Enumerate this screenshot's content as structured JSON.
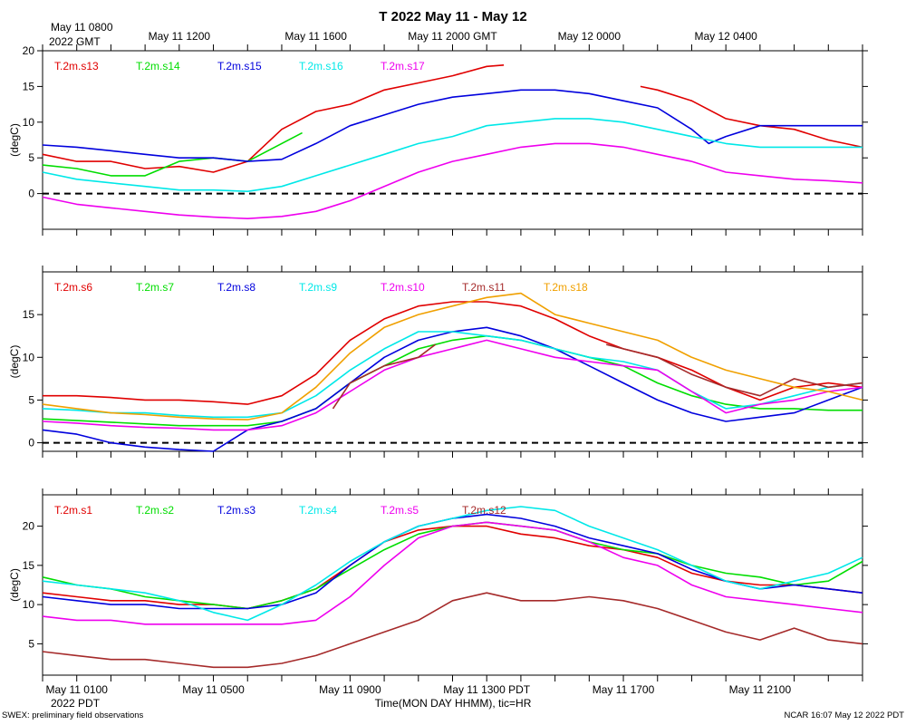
{
  "title": "T 2022 May 11 - May 12",
  "top_axis": {
    "start_label_line1": "May 11 0800",
    "start_label_line2": "2022 GMT",
    "tick_labels": [
      {
        "hour": 4,
        "label": "May 11 1200"
      },
      {
        "hour": 8,
        "label": "May 11 1600"
      },
      {
        "hour": 12,
        "label": "May 11 2000 GMT"
      },
      {
        "hour": 16,
        "label": "May 12 0000"
      },
      {
        "hour": 20,
        "label": "May 12 0400"
      }
    ]
  },
  "bottom_axis": {
    "tick_labels": [
      {
        "hour": 1,
        "label": "May 11 0100"
      },
      {
        "hour": 5,
        "label": "May 11 0500"
      },
      {
        "hour": 9,
        "label": "May 11 0900"
      },
      {
        "hour": 13,
        "label": "May 11 1300 PDT"
      },
      {
        "hour": 17,
        "label": "May 11 1700"
      },
      {
        "hour": 21,
        "label": "May 11 2100"
      }
    ],
    "start_label": "2022 PDT",
    "xlabel": "Time(MON DAY HHMM), tic=HR"
  },
  "footer_left": "SWEX: preliminary field observations",
  "footer_right": "NCAR 16:07 May 12 2022 PDT",
  "chart_data": [
    {
      "type": "line",
      "panel": "top",
      "ylabel": "(degC)",
      "xlim_hours_pdt": [
        0,
        24
      ],
      "ylim": [
        -5,
        20
      ],
      "yticks": [
        0,
        5,
        10,
        15,
        20
      ],
      "zero_line": true,
      "series": [
        {
          "name": "T.2m.s13",
          "color": "#e00000",
          "x": [
            0,
            1,
            2,
            3,
            4,
            5,
            6,
            7,
            8,
            9,
            10,
            11,
            12,
            13,
            13.5
          ],
          "y": [
            5.5,
            4.5,
            4.5,
            3.5,
            3.8,
            3,
            4.5,
            9,
            11.5,
            12.5,
            14.5,
            15.5,
            16.5,
            17.8,
            18
          ]
        },
        {
          "name": "T.2m.s13",
          "color": "#e00000",
          "x": [
            17.5,
            18,
            19,
            20,
            21,
            22,
            23,
            24
          ],
          "y": [
            15,
            14.5,
            13,
            10.5,
            9.5,
            9,
            7.5,
            6.5
          ]
        },
        {
          "name": "T.2m.s14",
          "color": "#00dd00",
          "x": [
            0,
            1,
            2,
            3,
            4,
            5,
            6,
            7.6
          ],
          "y": [
            4,
            3.5,
            2.5,
            2.5,
            4.5,
            5,
            4.5,
            8.5
          ]
        },
        {
          "name": "T.2m.s15",
          "color": "#0000dd",
          "x": [
            0,
            1,
            2,
            3,
            4,
            5,
            6,
            7,
            8,
            9,
            10,
            11,
            12,
            13,
            14,
            15,
            16,
            17,
            18,
            19,
            19.5,
            20,
            21,
            22,
            23,
            24
          ],
          "y": [
            6.8,
            6.5,
            6,
            5.5,
            5,
            5,
            4.5,
            4.8,
            7,
            9.5,
            11,
            12.5,
            13.5,
            14,
            14.5,
            14.5,
            14,
            13,
            12,
            9,
            7,
            8,
            9.5,
            9.5,
            9.5,
            9.5
          ]
        },
        {
          "name": "T.2m.s16",
          "color": "#00e8e8",
          "x": [
            0,
            1,
            2,
            3,
            4,
            5,
            6,
            7,
            8,
            9,
            10,
            11,
            12,
            13,
            14,
            15,
            16,
            17,
            18,
            19,
            20,
            21,
            22,
            23,
            24
          ],
          "y": [
            3,
            2,
            1.5,
            1,
            0.5,
            0.5,
            0.3,
            1,
            2.5,
            4,
            5.5,
            7,
            8,
            9.5,
            10,
            10.5,
            10.5,
            10,
            9,
            8,
            7,
            6.5,
            6.5,
            6.5,
            6.5
          ]
        },
        {
          "name": "T.2m.s17",
          "color": "#ee00ee",
          "x": [
            0,
            1,
            2,
            3,
            4,
            5,
            6,
            7,
            8,
            9,
            10,
            11,
            12,
            13,
            14,
            15,
            16,
            17,
            18,
            19,
            20,
            21,
            22,
            23,
            24
          ],
          "y": [
            -0.5,
            -1.5,
            -2,
            -2.5,
            -3,
            -3.3,
            -3.5,
            -3.2,
            -2.5,
            -1,
            1,
            3,
            4.5,
            5.5,
            6.5,
            7,
            7,
            6.5,
            5.5,
            4.5,
            3,
            2.5,
            2,
            1.8,
            1.5
          ]
        }
      ]
    },
    {
      "type": "line",
      "panel": "middle",
      "ylabel": "(degC)",
      "xlim_hours_pdt": [
        0,
        24
      ],
      "ylim": [
        -1,
        20
      ],
      "yticks": [
        0,
        5,
        10,
        15
      ],
      "zero_line": true,
      "series": [
        {
          "name": "T.2m.s6",
          "color": "#e00000",
          "x": [
            0,
            1,
            2,
            3,
            4,
            5,
            6,
            7,
            8,
            9,
            10,
            11,
            12,
            13,
            14,
            15,
            16,
            17,
            18,
            19,
            20,
            21,
            22,
            23,
            24
          ],
          "y": [
            5.5,
            5.5,
            5.3,
            5,
            5,
            4.8,
            4.5,
            5.5,
            8,
            12,
            14.5,
            16,
            16.5,
            16.5,
            16,
            14.5,
            12.5,
            11,
            10,
            8.5,
            6.5,
            5,
            6.5,
            7,
            6.5
          ]
        },
        {
          "name": "T.2m.s7",
          "color": "#00dd00",
          "x": [
            0,
            1,
            2,
            3,
            4,
            5,
            6,
            7,
            8,
            9,
            10,
            11,
            12,
            13,
            14,
            15,
            16,
            17,
            18,
            19,
            20,
            21,
            22,
            23,
            24
          ],
          "y": [
            2.8,
            2.6,
            2.4,
            2.2,
            2,
            2,
            2,
            2.5,
            4,
            7,
            9,
            11,
            12,
            12.5,
            12,
            11,
            10,
            9,
            7,
            5.5,
            4.5,
            4,
            4,
            3.8,
            3.8
          ]
        },
        {
          "name": "T.2m.s8",
          "color": "#0000dd",
          "x": [
            0,
            1,
            2,
            3,
            4,
            5,
            6,
            7,
            8,
            9,
            10,
            11,
            12,
            13,
            14,
            15,
            16,
            17,
            18,
            19,
            20,
            21,
            22,
            23,
            24
          ],
          "y": [
            1.5,
            1,
            0,
            -0.5,
            -0.8,
            -1,
            1.5,
            2.5,
            4,
            7,
            10,
            12,
            13,
            13.5,
            12.5,
            11,
            9,
            7,
            5,
            3.5,
            2.5,
            3,
            3.5,
            5,
            6.5
          ]
        },
        {
          "name": "T.2m.s9",
          "color": "#00e8e8",
          "x": [
            0,
            1,
            2,
            3,
            4,
            5,
            6,
            7,
            8,
            9,
            10,
            11,
            12,
            13,
            14,
            15,
            16,
            17,
            18,
            19,
            20,
            21,
            22,
            23,
            24
          ],
          "y": [
            4,
            3.8,
            3.5,
            3.5,
            3.2,
            3,
            3,
            3.5,
            5.5,
            8.5,
            11,
            13,
            13,
            12.5,
            12,
            11,
            10,
            9.5,
            8.5,
            6,
            4,
            4.5,
            5.5,
            6.5,
            7
          ]
        },
        {
          "name": "T.2m.s10",
          "color": "#ee00ee",
          "x": [
            0,
            1,
            2,
            3,
            4,
            5,
            6,
            7,
            8,
            9,
            10,
            11,
            12,
            13,
            14,
            15,
            16,
            17,
            18,
            19,
            20,
            21,
            22,
            23,
            24
          ],
          "y": [
            2.5,
            2.3,
            2,
            1.8,
            1.7,
            1.5,
            1.5,
            2,
            3.5,
            6,
            8.5,
            10,
            11,
            12,
            11,
            10,
            9.5,
            9,
            8.5,
            6,
            3.5,
            4.5,
            5,
            6,
            6.5
          ]
        },
        {
          "name": "T.2m.s11",
          "color": "#a52a2a",
          "x": [
            8.5,
            9,
            10,
            11,
            11.5
          ],
          "y": [
            4,
            7,
            9,
            10,
            11.5
          ]
        },
        {
          "name": "T.2m.s11",
          "color": "#a52a2a",
          "x": [
            16.5,
            17,
            18,
            19,
            20,
            21,
            22,
            23,
            24
          ],
          "y": [
            11.5,
            11,
            10,
            8,
            6.5,
            5.5,
            7.5,
            6.5,
            7
          ]
        },
        {
          "name": "T.2m.s18",
          "color": "#f0a000",
          "x": [
            0,
            1,
            2,
            3,
            4,
            5,
            6,
            7,
            8,
            9,
            10,
            11,
            12,
            13,
            14,
            15,
            16,
            17,
            18,
            19,
            20,
            21,
            22,
            23,
            24
          ],
          "y": [
            4.5,
            4,
            3.5,
            3.3,
            3,
            2.8,
            2.7,
            3.5,
            6.5,
            10.5,
            13.5,
            15,
            16,
            17,
            17.5,
            15,
            14,
            13,
            12,
            10,
            8.5,
            7.5,
            6.5,
            6,
            5
          ]
        }
      ]
    },
    {
      "type": "line",
      "panel": "bottom",
      "ylabel": "(degC)",
      "xlim_hours_pdt": [
        0,
        24
      ],
      "ylim": [
        1,
        24
      ],
      "yticks": [
        5,
        10,
        15,
        20
      ],
      "zero_line": false,
      "series": [
        {
          "name": "T.2m.s1",
          "color": "#e00000",
          "x": [
            0,
            1,
            2,
            3,
            4,
            5,
            6,
            7,
            8,
            9,
            10,
            11,
            12,
            13,
            14,
            15,
            16,
            17,
            18,
            19,
            20,
            21,
            22,
            23,
            24
          ],
          "y": [
            11.5,
            11,
            10.5,
            10.5,
            10,
            10,
            9.5,
            10.5,
            12,
            15,
            18,
            19.5,
            20,
            20,
            19,
            18.5,
            17.5,
            17,
            16,
            14,
            13,
            12.5,
            12.5,
            12,
            11.5
          ]
        },
        {
          "name": "T.2m.s2",
          "color": "#00dd00",
          "x": [
            0,
            1,
            2,
            3,
            4,
            5,
            6,
            7,
            8,
            9,
            10,
            11,
            12,
            13,
            14,
            15,
            16,
            17,
            18,
            19,
            20,
            21,
            22,
            23,
            24
          ],
          "y": [
            13.5,
            12.5,
            12,
            11,
            10.5,
            10,
            9.5,
            10.5,
            12,
            14.5,
            17,
            19,
            20,
            20.5,
            20,
            19.5,
            18,
            17,
            16.5,
            15,
            14,
            13.5,
            12.5,
            13,
            15.5
          ]
        },
        {
          "name": "T.2m.s3",
          "color": "#0000dd",
          "x": [
            0,
            1,
            2,
            3,
            4,
            5,
            6,
            7,
            8,
            9,
            10,
            11,
            12,
            13,
            14,
            15,
            16,
            17,
            18,
            19,
            20,
            21,
            22,
            23,
            24
          ],
          "y": [
            11,
            10.5,
            10,
            10,
            9.5,
            9.5,
            9.5,
            10,
            11.5,
            15,
            18,
            20,
            21,
            21.5,
            21,
            20,
            18.5,
            17.5,
            16.5,
            14.5,
            13,
            12,
            12.5,
            12,
            11.5
          ]
        },
        {
          "name": "T.2m.s4",
          "color": "#00e8e8",
          "x": [
            0,
            1,
            2,
            3,
            4,
            5,
            6,
            7,
            8,
            9,
            10,
            11,
            12,
            13,
            14,
            15,
            16,
            17,
            18,
            19,
            20,
            21,
            22,
            23,
            24
          ],
          "y": [
            13,
            12.5,
            12,
            11.5,
            10.5,
            9,
            8,
            10,
            12.5,
            15.5,
            18,
            20,
            21,
            22,
            22.5,
            22,
            20,
            18.5,
            17,
            15,
            13,
            12,
            13,
            14,
            16
          ]
        },
        {
          "name": "T.2m.s5",
          "color": "#ee00ee",
          "x": [
            0,
            1,
            2,
            3,
            4,
            5,
            6,
            7,
            8,
            9,
            10,
            11,
            12,
            13,
            14,
            15,
            16,
            17,
            18,
            19,
            20,
            21,
            22,
            23,
            24
          ],
          "y": [
            8.5,
            8,
            8,
            7.5,
            7.5,
            7.5,
            7.5,
            7.5,
            8,
            11,
            15,
            18.5,
            20,
            20.5,
            20,
            19.5,
            18,
            16,
            15,
            12.5,
            11,
            10.5,
            10,
            9.5,
            9
          ]
        },
        {
          "name": "T.2m.s12",
          "color": "#a52a2a",
          "x": [
            0,
            1,
            2,
            3,
            4,
            5,
            6,
            7,
            8,
            9,
            10,
            11,
            12,
            13,
            14,
            15,
            16,
            17,
            18,
            19,
            20,
            21,
            22,
            23,
            24
          ],
          "y": [
            4,
            3.5,
            3,
            3,
            2.5,
            2,
            2,
            2.5,
            3.5,
            5,
            6.5,
            8,
            10.5,
            11.5,
            10.5,
            10.5,
            11,
            10.5,
            9.5,
            8,
            6.5,
            5.5,
            7,
            5.5,
            5
          ]
        }
      ]
    }
  ]
}
